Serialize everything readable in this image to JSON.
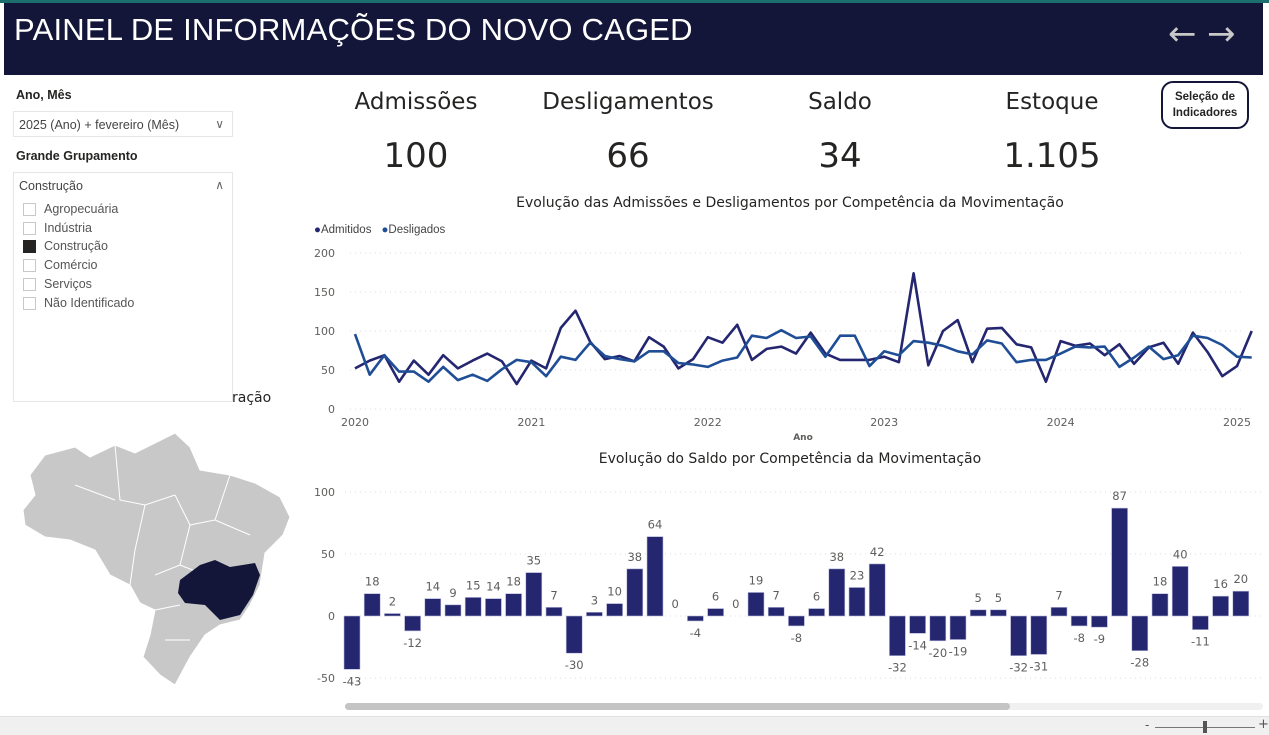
{
  "header": {
    "title": "PAINEL DE INFORMAÇÕES DO NOVO CAGED",
    "back_icon": "arrow-left-icon",
    "forward_icon": "arrow-right-icon"
  },
  "filters": {
    "ano_mes": {
      "label": "Ano, Mês",
      "value": "2025 (Ano) + fevereiro (Mês)"
    },
    "grupamento": {
      "label": "Grande Grupamento",
      "value": "Construção",
      "options": [
        {
          "label": "Agropecuária",
          "checked": false
        },
        {
          "label": "Indústria",
          "checked": false
        },
        {
          "label": "Construção",
          "checked": true
        },
        {
          "label": "Comércio",
          "checked": false
        },
        {
          "label": "Serviços",
          "checked": false
        },
        {
          "label": "Não Identificado",
          "checked": false
        }
      ]
    }
  },
  "map": {
    "title_fragment": "ração",
    "highlight_color": "#141639",
    "base_color": "#c8c8c8"
  },
  "kpis": [
    {
      "label": "Admissões",
      "value": "100"
    },
    {
      "label": "Desligamentos",
      "value": "66"
    },
    {
      "label": "Saldo",
      "value": "34"
    },
    {
      "label": "Estoque",
      "value": "1.105"
    }
  ],
  "selection_button": {
    "line1": "Seleção de",
    "line2": "Indicadores"
  },
  "colors": {
    "admitidos": "#252670",
    "desligados": "#1f4e96",
    "bars": "#252670",
    "header": "#141639"
  },
  "chart_data": [
    {
      "type": "line",
      "title": "Evolução das Admissões e Desligamentos por Competência da Movimentação",
      "xlabel": "Ano",
      "ylabel": "",
      "x_start": "2020-01",
      "x_ticks": [
        "2020",
        "2021",
        "2022",
        "2023",
        "2024",
        "2025"
      ],
      "y_ticks": [
        "0",
        "50",
        "100",
        "150",
        "200"
      ],
      "ylim": [
        0,
        200
      ],
      "legend_position": "top-left",
      "grid": true,
      "series": [
        {
          "name": "Admitidos",
          "values": [
            52,
            62,
            69,
            35,
            62,
            44,
            69,
            52,
            62,
            71,
            61,
            32,
            62,
            52,
            104,
            126,
            86,
            64,
            68,
            61,
            92,
            80,
            52,
            64,
            92,
            85,
            108,
            63,
            77,
            80,
            71,
            98,
            71,
            63,
            63,
            63,
            67,
            60,
            174,
            56,
            100,
            114,
            60,
            103,
            104,
            83,
            79,
            35,
            87,
            81,
            84,
            69,
            83,
            58,
            79,
            85,
            58,
            98,
            73,
            42,
            55,
            100
          ]
        },
        {
          "name": "Desligados",
          "values": [
            96,
            44,
            69,
            48,
            48,
            35,
            54,
            37,
            44,
            36,
            51,
            63,
            60,
            42,
            67,
            63,
            85,
            68,
            64,
            61,
            74,
            74,
            59,
            57,
            54,
            62,
            66,
            94,
            91,
            101,
            91,
            93,
            67,
            94,
            94,
            55,
            74,
            69,
            87,
            85,
            81,
            74,
            70,
            88,
            84,
            60,
            63,
            63,
            71,
            80,
            79,
            80,
            54,
            66,
            80,
            64,
            69,
            94,
            91,
            82,
            67,
            66
          ]
        }
      ]
    },
    {
      "type": "bar",
      "title": "Evolução do Saldo por Competência da Movimentação",
      "y_ticks": [
        "-50",
        "0",
        "50",
        "100"
      ],
      "ylim": [
        -60,
        105
      ],
      "grid": true,
      "values": [
        -43,
        18,
        2,
        -12,
        14,
        9,
        15,
        14,
        18,
        35,
        7,
        -30,
        3,
        10,
        38,
        64,
        0,
        -4,
        6,
        0,
        19,
        7,
        -8,
        6,
        38,
        23,
        42,
        -32,
        -14,
        -20,
        -19,
        5,
        5,
        -32,
        -31,
        7,
        -8,
        -9,
        87,
        -28,
        18,
        40,
        -11,
        16,
        20
      ]
    }
  ],
  "zoom": {
    "minus": "-",
    "plus": "+",
    "level": 0.65
  }
}
